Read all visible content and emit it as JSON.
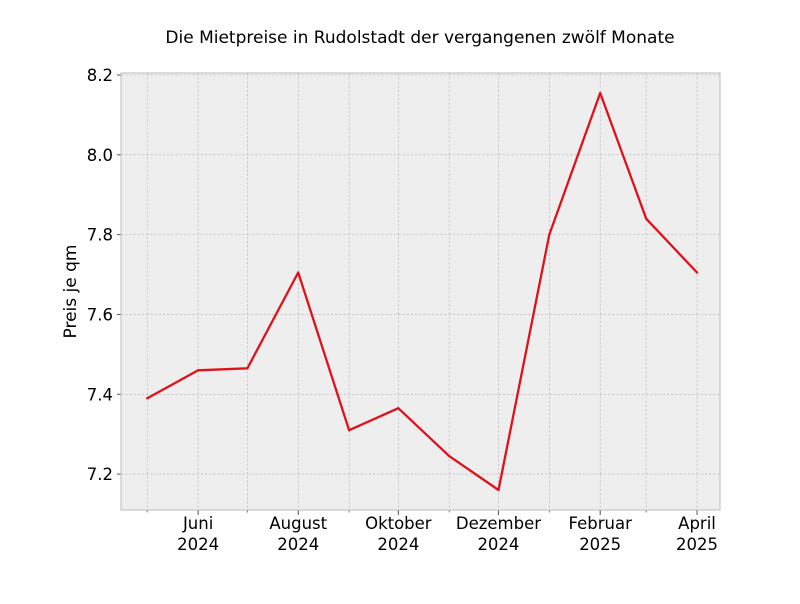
{
  "chart_data": {
    "type": "line",
    "title": "Die Mietpreise in Rudolstadt der vergangenen zwölf Monate",
    "xlabel": "",
    "ylabel": "Preis je qm",
    "x": [
      "2024-05",
      "2024-06",
      "2024-07",
      "2024-08",
      "2024-09",
      "2024-10",
      "2024-11",
      "2024-12",
      "2025-01",
      "2025-02",
      "2025-03",
      "2025-04"
    ],
    "series": [
      {
        "values": [
          7.39,
          7.46,
          7.465,
          7.705,
          7.31,
          7.365,
          7.245,
          7.16,
          7.8,
          8.155,
          7.84,
          7.705
        ]
      }
    ],
    "ylim": [
      7.11,
      8.205
    ],
    "xlim": [
      "2024-04-15",
      "2025-04-15"
    ],
    "yticks": [
      "7.2",
      "7.4",
      "7.6",
      "7.8",
      "8.0",
      "8.2"
    ],
    "xticks": [
      {
        "month": "Juni",
        "year": "2024"
      },
      {
        "month": "August",
        "year": "2024"
      },
      {
        "month": "Oktober",
        "year": "2024"
      },
      {
        "month": "Dezember",
        "year": "2024"
      },
      {
        "month": "Februar",
        "year": "2025"
      },
      {
        "month": "April",
        "year": "2025"
      }
    ],
    "grid": true,
    "colors": {
      "line": "#e0111b",
      "plot_background": "#eeeeee",
      "grid": "#b0b0b0",
      "frame": "#bcbcbc"
    }
  }
}
